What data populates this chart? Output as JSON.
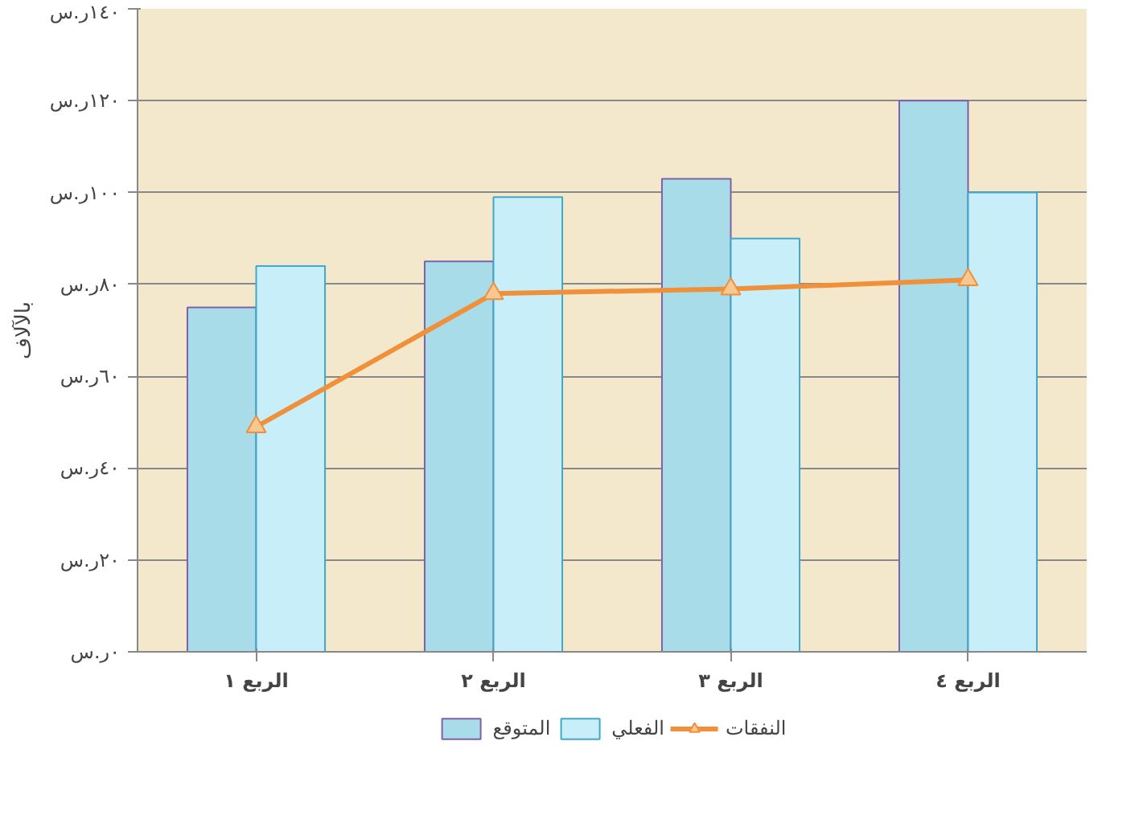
{
  "chart_data": {
    "type": "bar",
    "ylabel": "بالآلاف",
    "categories": [
      "الربع ١",
      "الربع ٢",
      "الربع ٣",
      "الربع ٤"
    ],
    "series": [
      {
        "name": "المتوقع",
        "color": "#a8dce8",
        "values": [
          75,
          85,
          103,
          120
        ]
      },
      {
        "name": "الفعلي",
        "color": "#c8eefa",
        "values": [
          84,
          99,
          90,
          100
        ]
      },
      {
        "name": "النفقات",
        "type": "line",
        "color": "#f0903a",
        "marker": "triangle",
        "values": [
          49,
          78,
          79,
          81
        ]
      }
    ],
    "ylim": [
      0,
      140
    ],
    "yticks": [
      {
        "value": 0,
        "label": "٠ر.س"
      },
      {
        "value": 20,
        "label": "٢٠ر.س"
      },
      {
        "value": 40,
        "label": "٤٠ر.س"
      },
      {
        "value": 60,
        "label": "٦٠ر.س"
      },
      {
        "value": 80,
        "label": "٨٠ر.س"
      },
      {
        "value": 100,
        "label": "١٠٠ر.س"
      },
      {
        "value": 120,
        "label": "١٢٠ر.س"
      },
      {
        "value": 140,
        "label": "١٤٠ر.س"
      }
    ],
    "grid": "y",
    "legend": "bottom"
  }
}
